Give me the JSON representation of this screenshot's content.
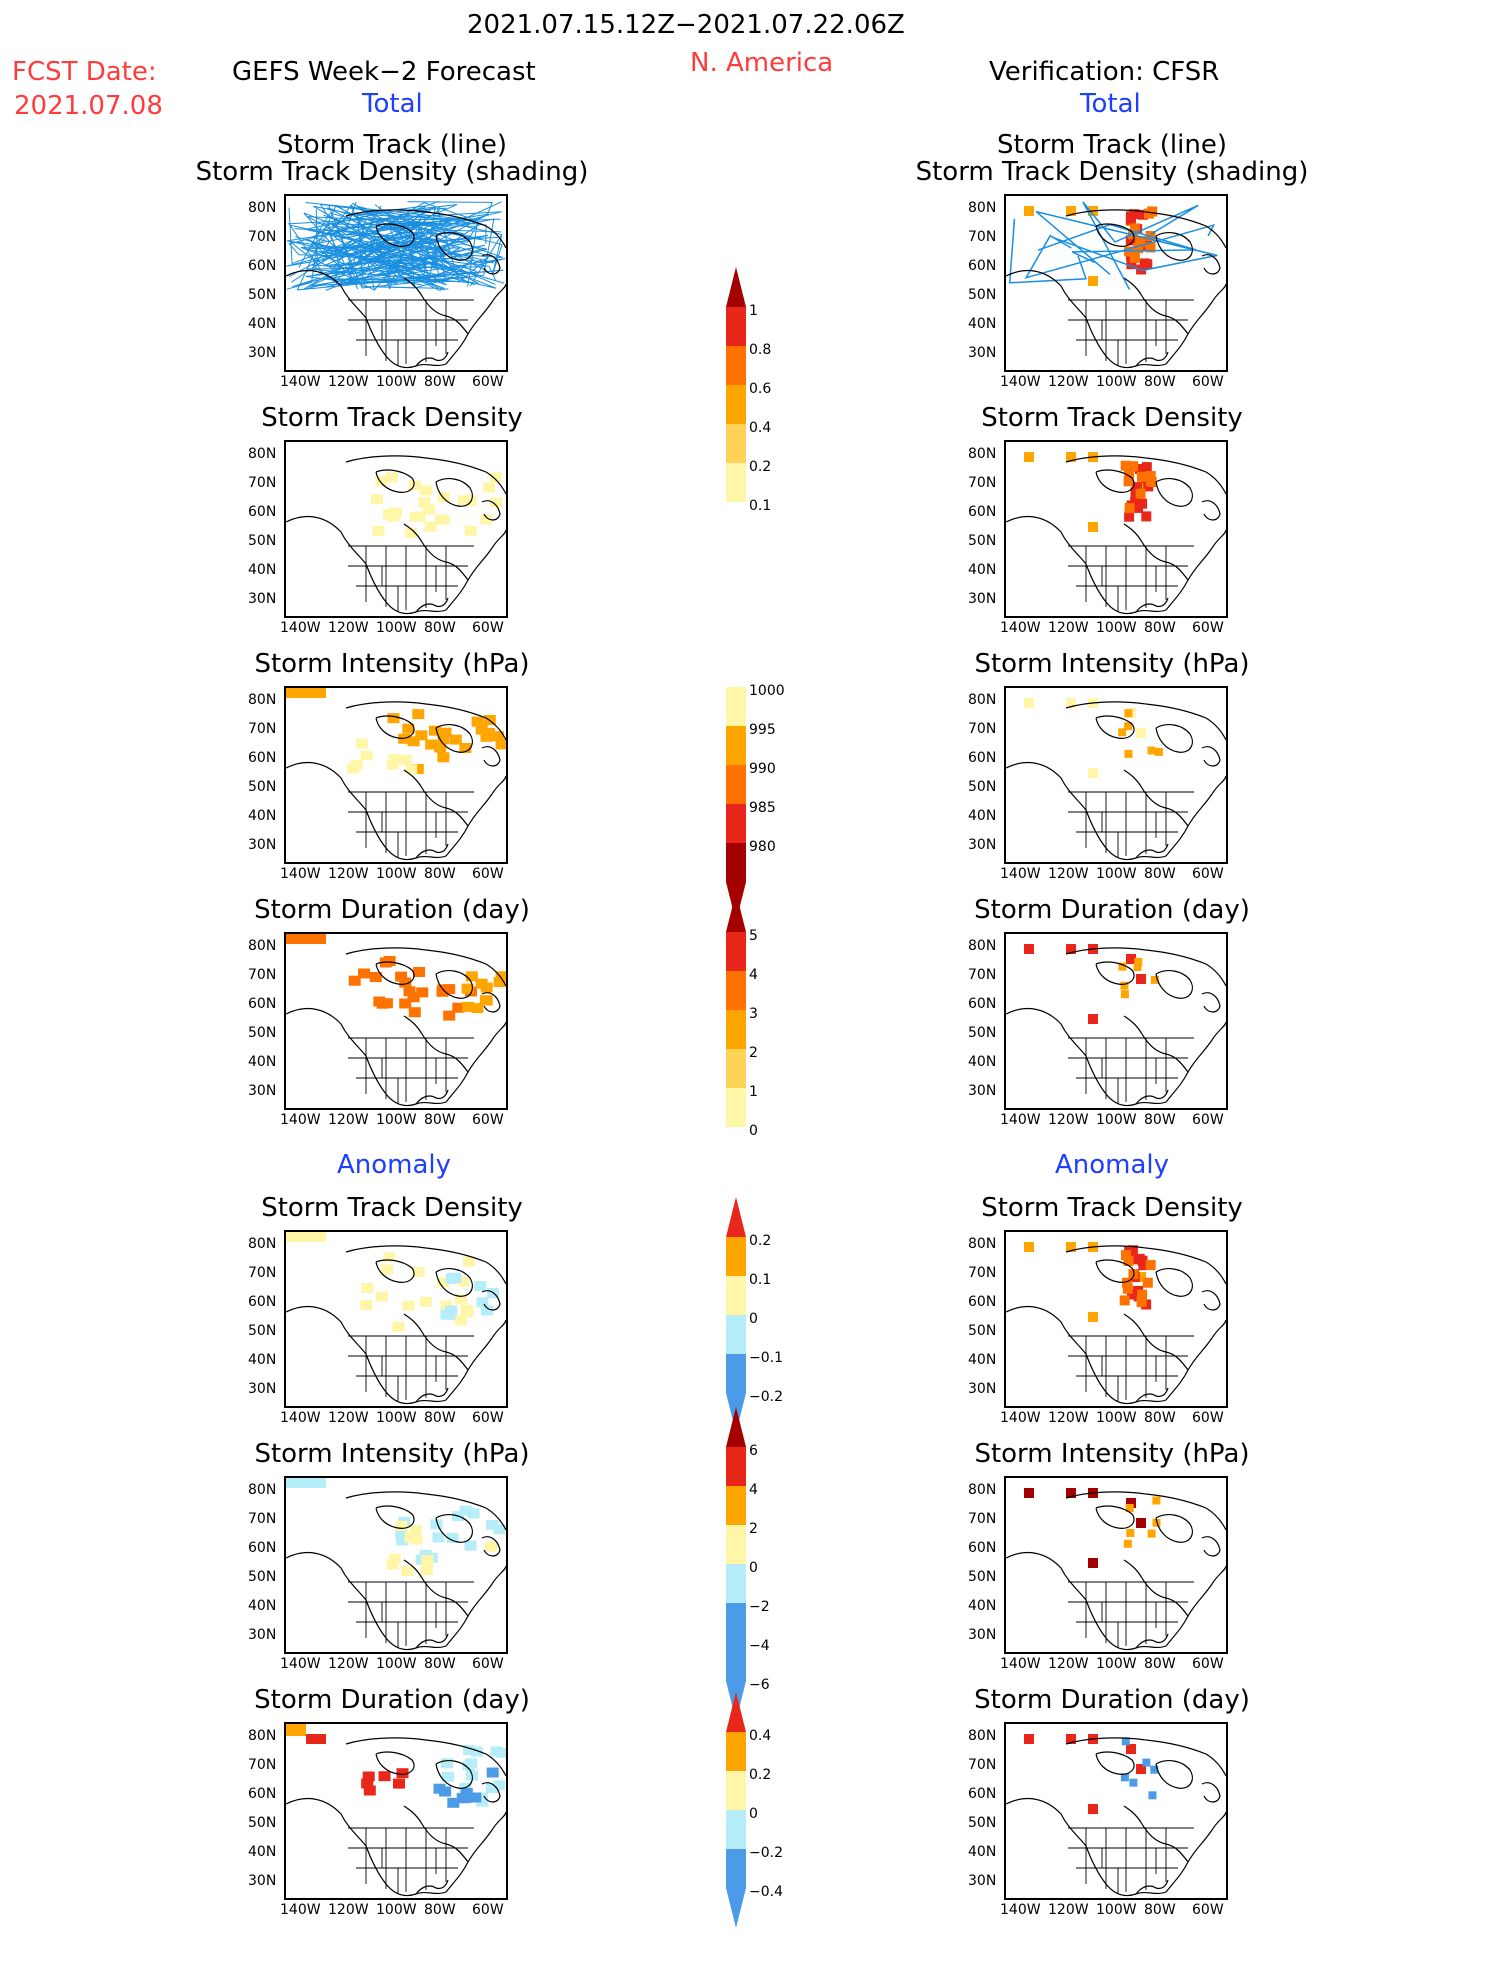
{
  "header": {
    "date_range": "2021.07.15.12Z−2021.07.22.06Z",
    "region": "N. America",
    "fcst_label": "FCST Date:",
    "fcst_date": "2021.07.08",
    "left_title": "GEFS Week−2 Forecast",
    "right_title": "Verification: CFSR",
    "total_label": "Total",
    "anomaly_label": "Anomaly"
  },
  "panels": {
    "track_line_1": "Storm Track (line)",
    "track_line_2": "Storm Track Density (shading)",
    "density": "Storm Track Density",
    "intensity": "Storm Intensity (hPa)",
    "duration": "Storm Duration (day)"
  },
  "axes": {
    "lat": [
      "80N",
      "70N",
      "60N",
      "50N",
      "40N",
      "30N"
    ],
    "lon": [
      "140W",
      "120W",
      "100W",
      "80W",
      "60W"
    ]
  },
  "colorbars": {
    "density_total": [
      "1",
      "0.8",
      "0.6",
      "0.4",
      "0.2",
      "0.1"
    ],
    "intensity_total": [
      "1000",
      "995",
      "990",
      "985",
      "980"
    ],
    "duration_total": [
      "5",
      "4",
      "3",
      "2",
      "1",
      "0"
    ],
    "density_anom": [
      "0.2",
      "0.1",
      "0",
      "−0.1",
      "−0.2"
    ],
    "intensity_anom": [
      "6",
      "4",
      "2",
      "0",
      "−2",
      "−4",
      "−6"
    ],
    "duration_anom": [
      "0.4",
      "0.2",
      "0",
      "−0.2",
      "−0.4"
    ]
  },
  "colors": {
    "header_red": "#ff3b3b",
    "label_blue": "#1d3fff",
    "track_line": "#1a8fe0",
    "shade_pale": "#fff6a8",
    "shade_lightorange": "#ffd25a",
    "shade_orange": "#ffa500",
    "shade_darkorange": "#ff7200",
    "shade_red": "#e8261a",
    "shade_darkred": "#a40000",
    "shade_lightblue": "#b5eef8",
    "shade_blue": "#4c9be8"
  }
}
